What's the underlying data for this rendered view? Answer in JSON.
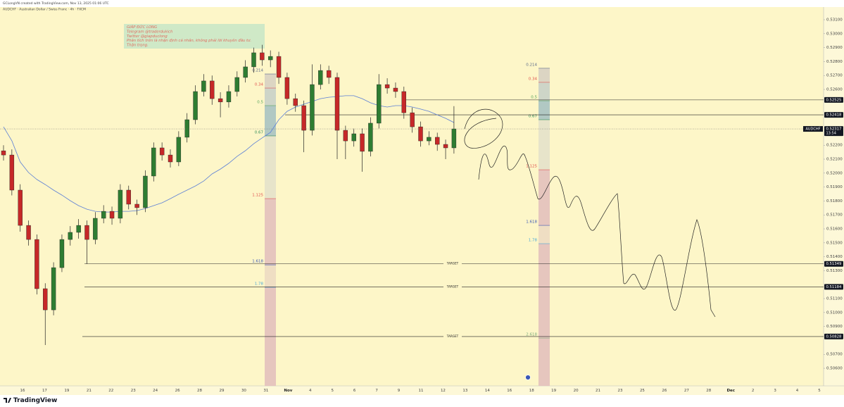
{
  "header": {
    "author_line": "GCLongVN created with TradingView.com, Nov 13, 2025 01:06 UTC",
    "symbol_line": "AUDCHF · Australian Dollar / Swiss Franc · 4h · FXCM"
  },
  "note": {
    "lines": [
      "GIÁP ĐỨC LONG",
      "Telegram @traderdukich",
      "Twitter @giapduclong",
      "Phân tích trên là nhận định cá nhân, không phải lời khuyên đầu tư.",
      "Thận trọng."
    ]
  },
  "chart_data": {
    "type": "candlestick",
    "symbol": "AUDCHF",
    "x_labels": [
      "16",
      "17",
      "19",
      "21",
      "22",
      "23",
      "24",
      "26",
      "28",
      "29",
      "30",
      "31",
      "Nov",
      "4",
      "5",
      "6",
      "7",
      "9",
      "11",
      "12",
      "13",
      "14",
      "16",
      "18",
      "19",
      "20",
      "21",
      "23",
      "25",
      "26",
      "27",
      "28",
      "Dec",
      "2",
      "3",
      "4",
      "5"
    ],
    "open": [
      0.5216,
      0.5213,
      0.51878,
      0.51625,
      0.51524,
      0.51171,
      0.51019,
      0.51322,
      0.51524,
      0.51575,
      0.51625,
      0.51524,
      0.51676,
      0.51726,
      0.51676,
      0.51878,
      0.51777,
      0.51752,
      0.51979,
      0.52181,
      0.5213,
      0.5208,
      0.52257,
      0.52383,
      0.52585,
      0.52661,
      0.52534,
      0.5251,
      0.52585,
      0.52686,
      0.52762,
      0.52863,
      0.52812,
      0.52837,
      0.52686,
      0.52534,
      0.52484,
      0.52307,
      0.52635,
      0.52736,
      0.52686,
      0.52307,
      0.52231,
      0.52282,
      0.52156,
      0.52358,
      0.52635,
      0.5261,
      0.52585,
      0.52433,
      0.52332,
      0.52231,
      0.52257,
      0.52206,
      0.52181
    ],
    "high": [
      0.522,
      0.5217,
      0.5192,
      0.5166,
      0.5156,
      0.5121,
      0.5136,
      0.5156,
      0.5162,
      0.5167,
      0.5166,
      0.5172,
      0.5177,
      0.5176,
      0.5192,
      0.5191,
      0.5181,
      0.5202,
      0.5222,
      0.5222,
      0.5217,
      0.523,
      0.5243,
      0.5263,
      0.5271,
      0.527,
      0.5258,
      0.5263,
      0.5273,
      0.5281,
      0.529,
      0.5292,
      0.5288,
      0.5287,
      0.5272,
      0.5257,
      0.5252,
      0.5278,
      0.5278,
      0.5277,
      0.5272,
      0.5234,
      0.5232,
      0.5232,
      0.524,
      0.5271,
      0.5268,
      0.5265,
      0.5262,
      0.5247,
      0.5237,
      0.523,
      0.5229,
      0.5224,
      0.5248
    ],
    "low": [
      0.5209,
      0.5184,
      0.5158,
      0.5148,
      0.5113,
      0.50767,
      0.5098,
      0.5129,
      0.5148,
      0.5153,
      0.5135,
      0.5149,
      0.5164,
      0.5163,
      0.5164,
      0.5174,
      0.517,
      0.5172,
      0.5194,
      0.5209,
      0.5204,
      0.5205,
      0.5222,
      0.5235,
      0.5255,
      0.5249,
      0.524,
      0.5247,
      0.5255,
      0.5265,
      0.5272,
      0.5277,
      0.5276,
      0.5264,
      0.5249,
      0.5244,
      0.5215,
      0.5227,
      0.526,
      0.5264,
      0.521,
      0.521,
      0.5219,
      0.5201,
      0.5212,
      0.5232,
      0.5257,
      0.5254,
      0.5239,
      0.5229,
      0.5219,
      0.522,
      0.5216,
      0.521,
      0.5214
    ],
    "close": [
      0.5213,
      0.51878,
      0.51625,
      0.51524,
      0.51171,
      0.51019,
      0.51322,
      0.51524,
      0.51575,
      0.51625,
      0.51524,
      0.51676,
      0.51726,
      0.51676,
      0.51878,
      0.51777,
      0.51752,
      0.51979,
      0.52181,
      0.5213,
      0.5208,
      0.52257,
      0.52383,
      0.52585,
      0.52661,
      0.52534,
      0.5251,
      0.52585,
      0.52686,
      0.52762,
      0.52863,
      0.52812,
      0.52837,
      0.52686,
      0.52534,
      0.52484,
      0.52307,
      0.52635,
      0.52736,
      0.52686,
      0.52307,
      0.52231,
      0.52282,
      0.52156,
      0.52358,
      0.52635,
      0.5261,
      0.52585,
      0.52433,
      0.52332,
      0.52231,
      0.52257,
      0.52206,
      0.52181,
      0.52317
    ],
    "ma": {
      "color": "#5b7fd6",
      "values": [
        0.52332,
        0.52231,
        0.5208,
        0.52004,
        0.51954,
        0.51918,
        0.51878,
        0.51842,
        0.51802,
        0.51767,
        0.51741,
        0.51726,
        0.51721,
        0.51721,
        0.51726,
        0.51726,
        0.51731,
        0.51746,
        0.51767,
        0.51787,
        0.51817,
        0.51848,
        0.51878,
        0.51908,
        0.51943,
        0.51994,
        0.52029,
        0.5207,
        0.5212,
        0.52161,
        0.52211,
        0.52252,
        0.52292,
        0.52383,
        0.52443,
        0.52474,
        0.52494,
        0.52514,
        0.52534,
        0.52544,
        0.52549,
        0.52555,
        0.52555,
        0.52534,
        0.52504,
        0.52484,
        0.52474,
        0.52484,
        0.52484,
        0.52474,
        0.52459,
        0.52443,
        0.52418,
        0.52393,
        0.52363
      ]
    },
    "up_color": "#2e7d32",
    "down_color": "#c62828",
    "grid": false,
    "ylim": [
      0.50474,
      0.53191
    ],
    "yticks": [
      {
        "value": 0.531,
        "label": "0.53100"
      },
      {
        "value": 0.53,
        "label": "0.53000"
      },
      {
        "value": 0.529,
        "label": "0.52900"
      },
      {
        "value": 0.528,
        "label": "0.52800"
      },
      {
        "value": 0.527,
        "label": "0.52700"
      },
      {
        "value": 0.526,
        "label": "0.52600"
      },
      {
        "value": 0.522,
        "label": "0.52200"
      },
      {
        "value": 0.521,
        "label": "0.52100"
      },
      {
        "value": 0.52,
        "label": "0.52000"
      },
      {
        "value": 0.519,
        "label": "0.51900"
      },
      {
        "value": 0.518,
        "label": "0.51800"
      },
      {
        "value": 0.517,
        "label": "0.51700"
      },
      {
        "value": 0.516,
        "label": "0.51600"
      },
      {
        "value": 0.515,
        "label": "0.51500"
      },
      {
        "value": 0.514,
        "label": "0.51400"
      },
      {
        "value": 0.513,
        "label": "0.51300"
      },
      {
        "value": 0.511,
        "label": "0.51100"
      },
      {
        "value": 0.51,
        "label": "0.51000"
      },
      {
        "value": 0.509,
        "label": "0.50900"
      },
      {
        "value": 0.507,
        "label": "0.50700"
      },
      {
        "value": 0.506,
        "label": "0.50600"
      }
    ],
    "last_price": 0.52317,
    "countdown": "13:54",
    "levels": [
      {
        "price": 0.52525
      },
      {
        "price": 0.52418
      },
      {
        "price": 0.51349,
        "label": "TARGET"
      },
      {
        "price": 0.51184,
        "label": "TARGET"
      },
      {
        "price": 0.50828,
        "label": "TARGET"
      }
    ],
    "fib_tools": [
      {
        "levels": [
          {
            "ratio": 0.214,
            "price": 0.52711,
            "color": "#5c6b8a",
            "fill": "#d8d2c2"
          },
          {
            "ratio": 0.34,
            "price": 0.5261,
            "color": "#e0524f",
            "fill": "#c9d2c8"
          },
          {
            "ratio": 0.5,
            "price": 0.52484,
            "color": "#5aa55e",
            "fill": "#a9c3c2"
          },
          {
            "ratio": 0.67,
            "price": 0.52267,
            "color": "#2e8b57",
            "fill": "#e4e2ca"
          },
          {
            "ratio": 1.125,
            "price": 0.51817,
            "color": "#e0524f",
            "fill": "#e3c1bd"
          },
          {
            "ratio": 1.618,
            "price": 0.51342,
            "color": "#3b58b5",
            "fill": "#eddcc2"
          },
          {
            "ratio": 1.78,
            "price": 0.51181,
            "color": "#4aa8d8",
            "fill": "#e3c1bd"
          }
        ]
      },
      {
        "levels": [
          {
            "ratio": 0.214,
            "price": 0.52752,
            "color": "#5c6b8a",
            "fill": "#d8d2c2"
          },
          {
            "ratio": 0.34,
            "price": 0.52651,
            "color": "#e0524f",
            "fill": "#c9d2c8"
          },
          {
            "ratio": 0.5,
            "price": 0.52519,
            "color": "#5aa55e",
            "fill": "#a9c3c2"
          },
          {
            "ratio": 0.67,
            "price": 0.52383,
            "color": "#2e8b57",
            "fill": "#e4e2ca"
          },
          {
            "ratio": 1.125,
            "price": 0.52024,
            "color": "#e0524f",
            "fill": "#e3c1bd"
          },
          {
            "ratio": 1.618,
            "price": 0.51625,
            "color": "#3b58b5",
            "fill": "#eddcc2"
          },
          {
            "ratio": 1.78,
            "price": 0.51494,
            "color": "#4aa8d8",
            "fill": "#e3c1bd"
          },
          {
            "ratio": 2.618,
            "price": 0.50817,
            "color": "#7cab7c",
            "fill": "#e3c1bd"
          }
        ]
      }
    ]
  },
  "footer": {
    "brand": "TradingView"
  }
}
